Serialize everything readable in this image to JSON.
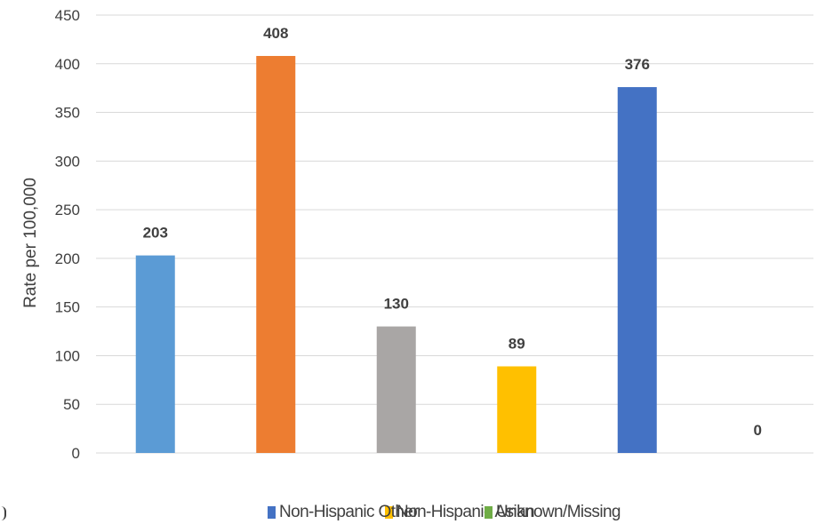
{
  "chart_data": {
    "type": "bar",
    "title": "",
    "xlabel": "",
    "ylabel": "Rate per 100,000",
    "ylim": [
      0,
      450
    ],
    "yticks": [
      0,
      50,
      100,
      150,
      200,
      250,
      300,
      350,
      400,
      450
    ],
    "grid": true,
    "legend_position": "bottom",
    "values": [
      203,
      408,
      130,
      89,
      376,
      0
    ],
    "data_labels": [
      "203",
      "408",
      "130",
      "89",
      "376",
      "0"
    ],
    "colors": [
      "#5B9BD5",
      "#ED7D31",
      "#A9A6A5",
      "#FFC000",
      "#4472C4",
      "#70AD47"
    ]
  },
  "legend": {
    "items": [
      {
        "label": "Non-Hispanic Asian",
        "color": "#FFC000"
      },
      {
        "label": "Non-Hispanic Other",
        "color": "#4472C4"
      },
      {
        "label": "Unknown/Missing",
        "color": "#70AD47"
      }
    ]
  }
}
